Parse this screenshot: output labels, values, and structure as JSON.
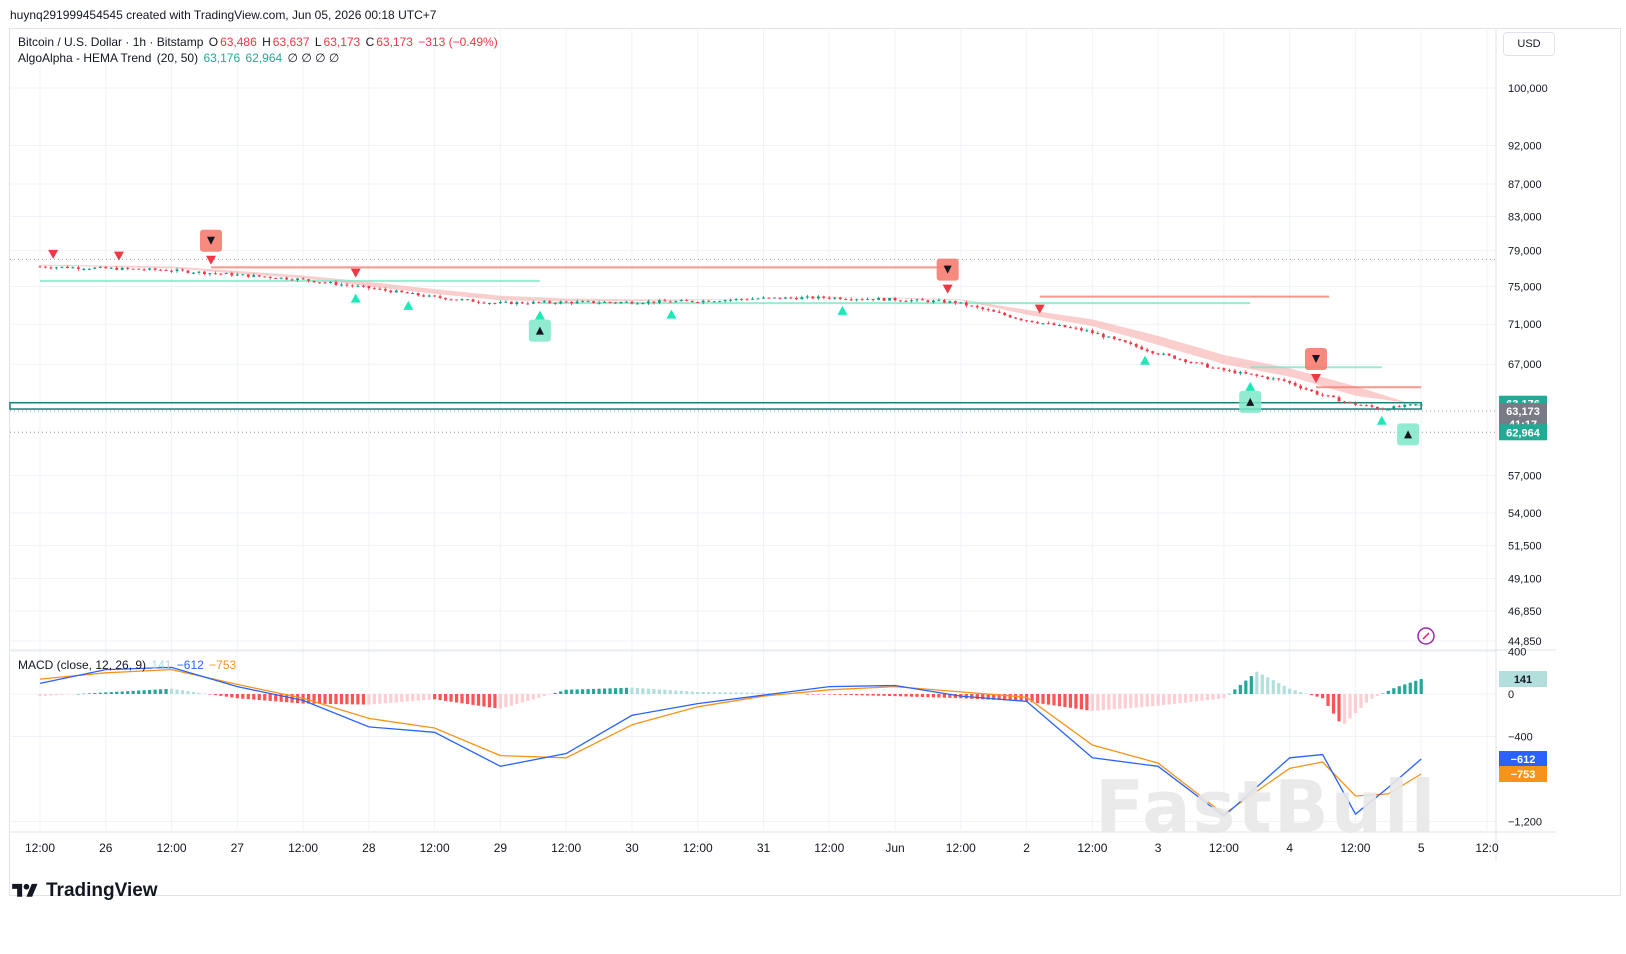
{
  "header": {
    "text": "huynq291999454545 created with TradingView.com, Jun 05, 2026 00:18 UTC+7"
  },
  "legend_main": {
    "symbol": "Bitcoin / U.S. Dollar · 1h · Bitstamp",
    "o_label": "O",
    "o_value": "63,486",
    "h_label": "H",
    "h_value": "63,637",
    "l_label": "L",
    "l_value": "63,173",
    "c_label": "C",
    "c_value": "63,173",
    "change": "−313 (−0.49%)"
  },
  "legend_indicator": {
    "name": "AlgoAlpha - HEMA Trend",
    "params": "(20, 50)",
    "v1": "63,176",
    "v2": "62,964",
    "extra": "∅ ∅ ∅ ∅"
  },
  "legend_macd": {
    "name": "MACD (close, 12, 26, 9)",
    "hist": "141",
    "macd": "−612",
    "signal": "−753"
  },
  "currency": "USD",
  "footer": {
    "brand": "TradingView"
  },
  "watermark": "FastBull",
  "colors": {
    "up": "#089981",
    "down": "#f23645",
    "macd_line": "#2962ff",
    "signal_line": "#f7931a",
    "hema_band": "#f7a6a6",
    "bull_box": "#7ee8c8",
    "bear_box": "#f77c70"
  },
  "price_labels": {
    "hema_fast": "63,176",
    "last_price": "63,173",
    "countdown": "41:17",
    "hema_slow": "62,964"
  },
  "macd_labels": {
    "hist": "141",
    "macd": "−612",
    "signal": "−753"
  },
  "chart_data": [
    {
      "type": "candlestick",
      "title": "Bitcoin / U.S. Dollar · 1h · Bitstamp",
      "scale": "log",
      "ylim": [
        44000,
        105000
      ],
      "y_ticks": [
        {
          "label": "100,000",
          "value": 100000
        },
        {
          "label": "92,000",
          "value": 92000
        },
        {
          "label": "87,000",
          "value": 87000
        },
        {
          "label": "83,000",
          "value": 83000
        },
        {
          "label": "79,000",
          "value": 79000
        },
        {
          "label": "75,000",
          "value": 75000
        },
        {
          "label": "71,000",
          "value": 71000
        },
        {
          "label": "67,000",
          "value": 67000
        },
        {
          "label": "57,000",
          "value": 57000
        },
        {
          "label": "54,000",
          "value": 54000
        },
        {
          "label": "51,500",
          "value": 51500
        },
        {
          "label": "49,100",
          "value": 49100
        },
        {
          "label": "46,850",
          "value": 46850
        },
        {
          "label": "44,850",
          "value": 44850
        }
      ],
      "x_ticks": [
        "12:00",
        "26",
        "12:00",
        "27",
        "12:00",
        "28",
        "12:00",
        "29",
        "12:00",
        "30",
        "12:00",
        "31",
        "12:00",
        "Jun",
        "12:00",
        "2",
        "12:00",
        "3",
        "12:00",
        "4",
        "12:00",
        "5",
        "12:0"
      ],
      "price_path": [
        [
          25.5,
          77200
        ],
        [
          26.5,
          76800
        ],
        [
          27.0,
          76300
        ],
        [
          27.5,
          75800
        ],
        [
          28.0,
          74900
        ],
        [
          28.5,
          73900
        ],
        [
          29.0,
          73200
        ],
        [
          29.5,
          73300
        ],
        [
          30.0,
          73300
        ],
        [
          30.5,
          73400
        ],
        [
          31.0,
          73700
        ],
        [
          31.5,
          73800
        ],
        [
          32.0,
          73600
        ],
        [
          32.5,
          73300
        ],
        [
          33.0,
          71500
        ],
        [
          33.5,
          70300
        ],
        [
          34.0,
          68200
        ],
        [
          34.5,
          66500
        ],
        [
          35.0,
          65400
        ],
        [
          35.25,
          64200
        ],
        [
          35.5,
          63300
        ],
        [
          35.75,
          62800
        ],
        [
          36.0,
          63173
        ]
      ],
      "hema_fast": [
        [
          25.5,
          77300
        ],
        [
          26.5,
          77000
        ],
        [
          27.0,
          76400
        ],
        [
          27.5,
          75900
        ],
        [
          28.0,
          75000
        ],
        [
          28.5,
          74200
        ],
        [
          29.0,
          73500
        ],
        [
          29.5,
          73400
        ],
        [
          30.0,
          73400
        ],
        [
          30.5,
          73500
        ],
        [
          31.0,
          73700
        ],
        [
          31.5,
          73900
        ],
        [
          32.0,
          73700
        ],
        [
          32.5,
          73500
        ],
        [
          33.0,
          72000
        ],
        [
          33.5,
          70800
        ],
        [
          34.0,
          68900
        ],
        [
          34.5,
          67000
        ],
        [
          35.0,
          65800
        ],
        [
          35.5,
          64000
        ],
        [
          36.0,
          63176
        ]
      ],
      "hema_slow": [
        [
          25.5,
          77400
        ],
        [
          26.5,
          77200
        ],
        [
          27.0,
          76700
        ],
        [
          27.5,
          76200
        ],
        [
          28.0,
          75500
        ],
        [
          28.5,
          74700
        ],
        [
          29.0,
          74000
        ],
        [
          29.5,
          73700
        ],
        [
          30.0,
          73600
        ],
        [
          30.5,
          73600
        ],
        [
          31.0,
          73700
        ],
        [
          31.5,
          73800
        ],
        [
          32.0,
          73800
        ],
        [
          32.5,
          73600
        ],
        [
          33.0,
          72500
        ],
        [
          33.5,
          71500
        ],
        [
          34.0,
          69800
        ],
        [
          34.5,
          67900
        ],
        [
          35.0,
          66600
        ],
        [
          35.5,
          64900
        ],
        [
          36.0,
          62964
        ]
      ],
      "bull_signals": [
        27.9,
        28.3,
        29.3,
        30.3,
        31.6,
        33.9,
        34.7,
        35.7
      ],
      "bear_signals": [
        25.6,
        26.1,
        26.8,
        27.9,
        32.4,
        33.1,
        35.2
      ],
      "bull_labels": [
        29.3,
        34.7,
        35.9
      ],
      "bear_labels": [
        26.8,
        32.4,
        35.2
      ],
      "horizontal_levels": [
        {
          "from": 25.5,
          "to": 29.3,
          "value": 75600,
          "side": "bull"
        },
        {
          "from": 26.8,
          "to": 32.4,
          "value": 77100,
          "side": "bear"
        },
        {
          "from": 29.3,
          "to": 34.7,
          "value": 73200,
          "side": "bull"
        },
        {
          "from": 33.1,
          "to": 35.3,
          "value": 73900,
          "side": "bear"
        },
        {
          "from": 34.7,
          "to": 35.7,
          "value": 66700,
          "side": "bull"
        },
        {
          "from": 35.2,
          "to": 36.0,
          "value": 64800,
          "side": "bear"
        }
      ],
      "dotted_levels": [
        78000,
        62600,
        60700
      ]
    },
    {
      "type": "bar",
      "title": "MACD (close, 12, 26, 9)",
      "ylim": [
        -1300,
        450
      ],
      "y_ticks": [
        {
          "label": "400",
          "value": 400
        },
        {
          "label": "0",
          "value": 0
        },
        {
          "label": "−400",
          "value": -400
        },
        {
          "label": "−1,200",
          "value": -1200
        }
      ],
      "macd": [
        [
          25.5,
          100
        ],
        [
          26.0,
          230
        ],
        [
          26.5,
          250
        ],
        [
          27.0,
          70
        ],
        [
          27.5,
          -60
        ],
        [
          28.0,
          -310
        ],
        [
          28.5,
          -360
        ],
        [
          29.0,
          -680
        ],
        [
          29.5,
          -560
        ],
        [
          30.0,
          -200
        ],
        [
          30.5,
          -90
        ],
        [
          31.0,
          -10
        ],
        [
          31.5,
          70
        ],
        [
          32.0,
          80
        ],
        [
          32.5,
          -20
        ],
        [
          33.0,
          -70
        ],
        [
          33.5,
          -600
        ],
        [
          34.0,
          -680
        ],
        [
          34.5,
          -1150
        ],
        [
          35.0,
          -600
        ],
        [
          35.25,
          -570
        ],
        [
          35.5,
          -1130
        ],
        [
          35.75,
          -880
        ],
        [
          36.0,
          -612
        ]
      ],
      "signal": [
        [
          25.5,
          140
        ],
        [
          26.0,
          200
        ],
        [
          26.5,
          230
        ],
        [
          27.0,
          90
        ],
        [
          27.5,
          -40
        ],
        [
          28.0,
          -230
        ],
        [
          28.5,
          -320
        ],
        [
          29.0,
          -580
        ],
        [
          29.5,
          -600
        ],
        [
          30.0,
          -290
        ],
        [
          30.5,
          -120
        ],
        [
          31.0,
          -20
        ],
        [
          31.5,
          40
        ],
        [
          32.0,
          70
        ],
        [
          32.5,
          20
        ],
        [
          33.0,
          -30
        ],
        [
          33.5,
          -480
        ],
        [
          34.0,
          -650
        ],
        [
          34.5,
          -1130
        ],
        [
          35.0,
          -700
        ],
        [
          35.25,
          -640
        ],
        [
          35.5,
          -960
        ],
        [
          35.75,
          -940
        ],
        [
          36.0,
          -753
        ]
      ],
      "hist_peaks": [
        [
          25.5,
          -20
        ],
        [
          26.5,
          50
        ],
        [
          27.0,
          -40
        ],
        [
          27.5,
          -90
        ],
        [
          28.0,
          -100
        ],
        [
          28.5,
          -50
        ],
        [
          29.0,
          -140
        ],
        [
          29.5,
          40
        ],
        [
          30.0,
          60
        ],
        [
          30.5,
          20
        ],
        [
          31.0,
          10
        ],
        [
          32.0,
          -20
        ],
        [
          32.5,
          -40
        ],
        [
          33.0,
          -70
        ],
        [
          33.5,
          -160
        ],
        [
          34.0,
          -110
        ],
        [
          34.5,
          -40
        ],
        [
          34.75,
          210
        ],
        [
          35.0,
          50
        ],
        [
          35.25,
          -40
        ],
        [
          35.4,
          -300
        ],
        [
          35.6,
          -60
        ],
        [
          35.8,
          60
        ],
        [
          36.0,
          141
        ]
      ]
    }
  ]
}
